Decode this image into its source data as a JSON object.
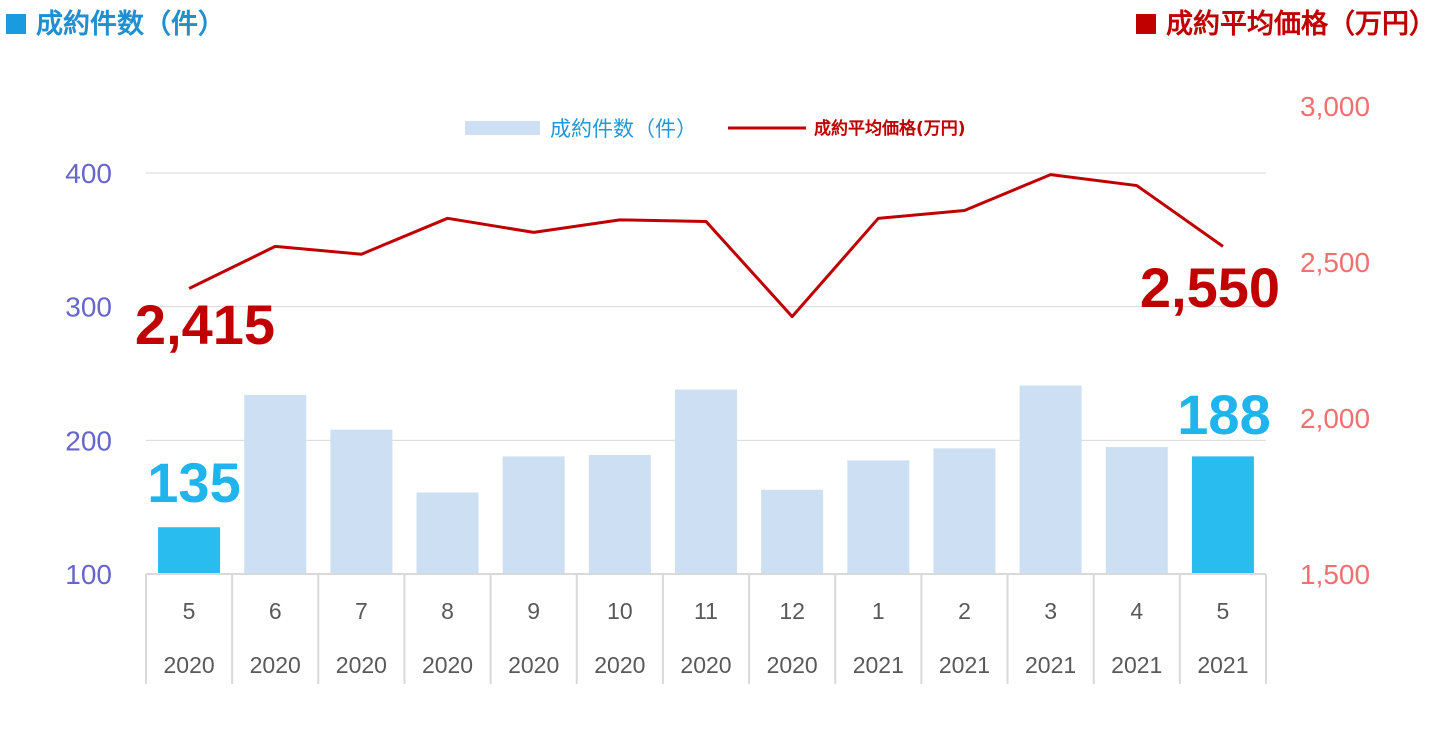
{
  "header": {
    "left_title": "成約件数（件）",
    "right_title": "成約平均価格（万円）",
    "left_color": "#1a9be0",
    "right_color": "#c00000"
  },
  "chart_data": {
    "type": "bar+line",
    "categories": [
      {
        "month": "5",
        "year": "2020"
      },
      {
        "month": "6",
        "year": "2020"
      },
      {
        "month": "7",
        "year": "2020"
      },
      {
        "month": "8",
        "year": "2020"
      },
      {
        "month": "9",
        "year": "2020"
      },
      {
        "month": "10",
        "year": "2020"
      },
      {
        "month": "11",
        "year": "2020"
      },
      {
        "month": "12",
        "year": "2020"
      },
      {
        "month": "1",
        "year": "2021"
      },
      {
        "month": "2",
        "year": "2021"
      },
      {
        "month": "3",
        "year": "2021"
      },
      {
        "month": "4",
        "year": "2021"
      },
      {
        "month": "5",
        "year": "2021"
      }
    ],
    "series": [
      {
        "name": "成約件数（件）",
        "type": "bar",
        "axis": "left",
        "values": [
          135,
          234,
          208,
          161,
          188,
          189,
          238,
          163,
          185,
          194,
          241,
          195,
          188
        ],
        "color": "#cddff2",
        "highlight_color": "#29bdef",
        "highlight_indices": [
          0,
          12
        ]
      },
      {
        "name": "成約平均価格(万円)",
        "type": "line",
        "axis": "right",
        "values": [
          2415,
          2550,
          2525,
          2640,
          2595,
          2635,
          2630,
          2325,
          2640,
          2665,
          2780,
          2745,
          2550
        ],
        "color": "#c00000"
      }
    ],
    "left_axis": {
      "ticks": [
        100,
        200,
        300,
        400
      ],
      "ylim": [
        100,
        400
      ],
      "color": "#6666cc"
    },
    "right_axis": {
      "ticks": [
        "1,500",
        "2,000",
        "2,500",
        "3,000"
      ],
      "tick_values": [
        1500,
        2000,
        2500,
        3000
      ],
      "ylim": [
        1500,
        3000
      ],
      "color": "#f07070"
    },
    "annotations": [
      {
        "series": 0,
        "index": 0,
        "text": "135",
        "color": "#1fb4ec"
      },
      {
        "series": 0,
        "index": 12,
        "text": "188",
        "color": "#1fb4ec"
      },
      {
        "series": 1,
        "index": 0,
        "text": "2,415",
        "color": "#c00000"
      },
      {
        "series": 1,
        "index": 12,
        "text": "2,550",
        "color": "#c00000"
      }
    ],
    "legend": {
      "position": "top-center",
      "labels": [
        "成約件数（件）",
        "成約平均価格(万円)"
      ]
    },
    "grid": true
  }
}
